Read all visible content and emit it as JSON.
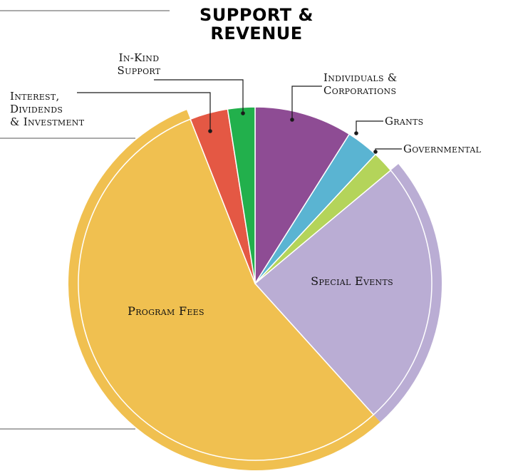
{
  "chart_data": {
    "type": "pie",
    "title": "Support & Revenue",
    "title_lines": [
      "SUPPORT &",
      "REVENUE"
    ],
    "slices": [
      {
        "label": "Individuals & Corporations",
        "label_lines": [
          "Individuals &",
          "Corporations"
        ],
        "value": 9.0,
        "color": "#8e4c94"
      },
      {
        "label": "Grants",
        "label_lines": [
          "Grants"
        ],
        "value": 3.0,
        "color": "#5ab4d2"
      },
      {
        "label": "Governmental",
        "label_lines": [
          "Governmental"
        ],
        "value": 2.0,
        "color": "#b4d45a"
      },
      {
        "label": "Special Events",
        "label_lines": [
          "Special Events"
        ],
        "value": 24.5,
        "color": "#baadd4",
        "label_inside": true
      },
      {
        "label": "Program Fees",
        "label_lines": [
          "Program Fees"
        ],
        "value": 56.0,
        "color": "#f0c050",
        "label_inside": true
      },
      {
        "label": "Interest, Dividends & Investment",
        "label_lines": [
          "Interest,",
          "Dividends",
          "& Investment"
        ],
        "value": 3.5,
        "color": "#e45844"
      },
      {
        "label": "In-Kind Support",
        "label_lines": [
          "In-Kind",
          "Support"
        ],
        "value": 2.5,
        "color": "#22b04c"
      }
    ],
    "outer_ring_colors": {
      "Special Events": "#baadd4",
      "Program Fees": "#f0c050"
    },
    "start_angle": "12 o'clock",
    "direction": "clockwise",
    "legend": "none"
  }
}
